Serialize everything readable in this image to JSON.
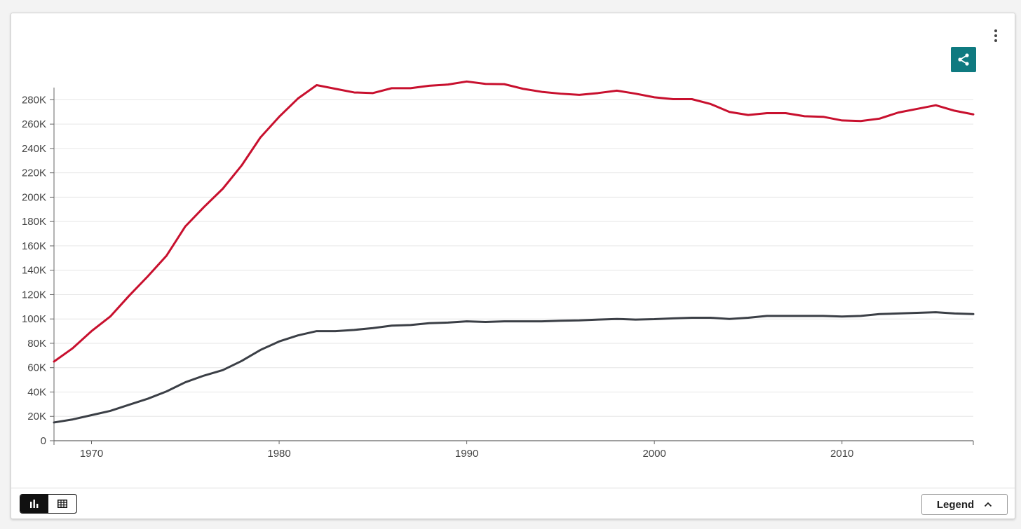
{
  "toolbar": {
    "more_icon": "more-vertical-icon",
    "share_icon": "share-icon",
    "share_color": "#0f7a80"
  },
  "footer": {
    "chart_view_icon": "bar-chart-icon",
    "table_view_icon": "table-icon",
    "legend_label": "Legend",
    "legend_icon": "chevron-up-icon"
  },
  "chart_data": {
    "type": "line",
    "title": "",
    "xlabel": "",
    "ylabel": "",
    "xlim": [
      1968,
      2017
    ],
    "ylim": [
      0,
      290000
    ],
    "x_ticks": [
      1970,
      1980,
      1990,
      2000,
      2010
    ],
    "y_ticks": [
      0,
      20000,
      40000,
      60000,
      80000,
      100000,
      120000,
      140000,
      160000,
      180000,
      200000,
      220000,
      240000,
      260000,
      280000
    ],
    "y_tick_labels": [
      "0",
      "20K",
      "40K",
      "60K",
      "80K",
      "100K",
      "120K",
      "140K",
      "160K",
      "180K",
      "200K",
      "220K",
      "240K",
      "260K",
      "280K"
    ],
    "grid": true,
    "x": [
      1968,
      1969,
      1970,
      1971,
      1972,
      1973,
      1974,
      1975,
      1976,
      1977,
      1978,
      1979,
      1980,
      1981,
      1982,
      1983,
      1984,
      1985,
      1986,
      1987,
      1988,
      1989,
      1990,
      1991,
      1992,
      1993,
      1994,
      1995,
      1996,
      1997,
      1998,
      1999,
      2000,
      2001,
      2002,
      2003,
      2004,
      2005,
      2006,
      2007,
      2008,
      2009,
      2010,
      2011,
      2012,
      2013,
      2014,
      2015,
      2016,
      2017
    ],
    "series": [
      {
        "color": "#c8102e",
        "values": [
          65000,
          76000,
          90000,
          102000,
          119000,
          135000,
          152000,
          176000,
          192000,
          207000,
          226000,
          249000,
          266000,
          281000,
          292000,
          289000,
          286000,
          285500,
          289500,
          289500,
          291500,
          292500,
          295000,
          293000,
          292800,
          289000,
          286500,
          285000,
          284000,
          285500,
          287500,
          285000,
          282000,
          280500,
          280500,
          276500,
          270000,
          267500,
          269000,
          269000,
          266500,
          266000,
          263000,
          262500,
          264500,
          269500,
          272500,
          275500,
          271000,
          268000
        ]
      },
      {
        "color": "#3b3f46",
        "values": [
          15000,
          17500,
          21000,
          24500,
          29500,
          34500,
          40500,
          48000,
          53500,
          58000,
          65500,
          74500,
          81500,
          86500,
          90000,
          90000,
          91000,
          92500,
          94500,
          95000,
          96500,
          97000,
          98000,
          97500,
          98000,
          98000,
          98000,
          98500,
          98800,
          99500,
          100000,
          99500,
          99800,
          100500,
          101000,
          101000,
          100000,
          101000,
          102500,
          102500,
          102500,
          102500,
          102000,
          102500,
          104000,
          104500,
          105000,
          105500,
          104500,
          104000
        ]
      }
    ]
  }
}
